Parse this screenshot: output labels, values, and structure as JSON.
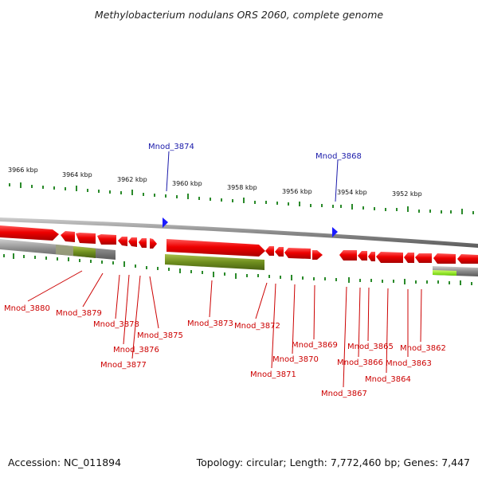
{
  "title": "Methylobacterium nodulans ORS 2060, complete genome",
  "footer": {
    "accession": "Accession: NC_011894",
    "info": "Topology: circular; Length: 7,772,460 bp; Genes: 7,447"
  },
  "scale_labels": [
    "3966 kbp",
    "3964 kbp",
    "3962 kbp",
    "3960 kbp",
    "3958 kbp",
    "3956 kbp",
    "3954 kbp",
    "3952 kbp"
  ],
  "blue_labels": [
    "Mnod_3874",
    "Mnod_3868"
  ],
  "red_labels": [
    "Mnod_3880",
    "Mnod_3879",
    "Mnod_3878",
    "Mnod_3876",
    "Mnod_3877",
    "Mnod_3875",
    "Mnod_3873",
    "Mnod_3872",
    "Mnod_3871",
    "Mnod_3870",
    "Mnod_3869",
    "Mnod_3867",
    "Mnod_3866",
    "Mnod_3865",
    "Mnod_3864",
    "Mnod_3863",
    "Mnod_3862"
  ],
  "colors": {
    "gene": "#ee0000",
    "gene_alt": "#7a9a1a",
    "track": "#888888",
    "tick": "#2a8a2a",
    "label_red": "#cc0000",
    "label_blue": "#1a1aaa"
  }
}
